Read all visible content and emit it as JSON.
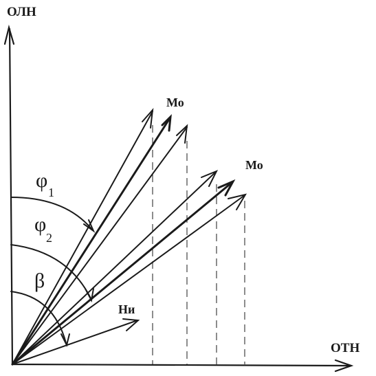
{
  "axes": {
    "y_label": "ОЛН",
    "x_label": "ОТН"
  },
  "vector_labels": {
    "upper_group": "Мо",
    "lower_group": "Мо",
    "short_vector": "Ни"
  },
  "angle_labels": {
    "phi1_symbol": "φ",
    "phi1_subscript": "1",
    "phi2_symbol": "φ",
    "phi2_subscript": "2",
    "beta_symbol": "β"
  }
}
